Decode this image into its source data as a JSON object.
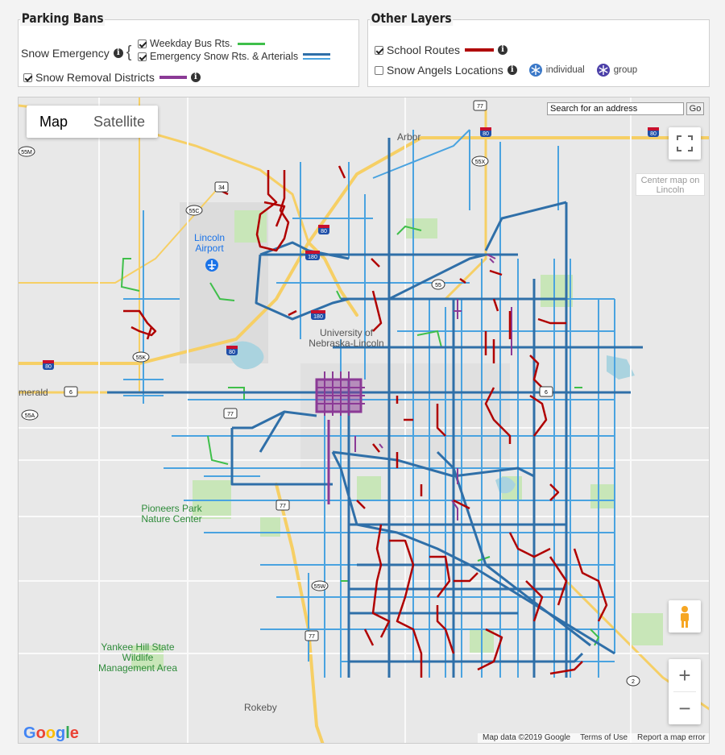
{
  "parking_bans": {
    "title": "Parking Bans",
    "snow_emergency_label": "Snow Emergency",
    "bracket": "{",
    "weekday_bus": {
      "label": "Weekday Bus Rts.",
      "checked": true,
      "color": "#3fbf4a"
    },
    "emergency_snow": {
      "label": "Emergency Snow Rts. & Arterials",
      "checked": true,
      "color_main": "#2f6fa8",
      "color_light": "#4aa3e0"
    },
    "snow_removal": {
      "label": "Snow Removal Districts",
      "checked": true,
      "color": "#8b3a96"
    }
  },
  "other_layers": {
    "title": "Other Layers",
    "school_routes": {
      "label": "School Routes",
      "checked": true,
      "color": "#b00000"
    },
    "snow_angels": {
      "label": "Snow Angels Locations",
      "checked": false,
      "individual_label": "individual",
      "group_label": "group"
    }
  },
  "map": {
    "type_buttons": {
      "map": "Map",
      "satellite": "Satellite"
    },
    "search_placeholder": "Search for an address",
    "search_go": "Go",
    "center_button": "Center map on Lincoln",
    "fullscreen_icon": "fullscreen-icon",
    "zoom_in": "+",
    "zoom_out": "−",
    "google_logo": "Google",
    "attribution": {
      "data": "Map data ©2019 Google",
      "terms": "Terms of Use",
      "report": "Report a map error"
    },
    "places": {
      "arbor": "Arbor",
      "lincoln_airport": "Lincoln Airport",
      "unl": "University of Nebraska-Lincoln",
      "emerald": "merald",
      "pioneers_park": "Pioneers Park Nature Center",
      "yankee_hill": "Yankee Hill State Wildlife Management Area",
      "rokeby": "Rokeby"
    },
    "shields": {
      "i80_a": "80",
      "i80_b": "80",
      "i80_c": "80",
      "i80_d": "80",
      "i80_e": "80",
      "i180": "180",
      "i180_b": "180",
      "us77_a": "77",
      "us77_b": "77",
      "us77_c": "77",
      "us77_d": "77",
      "us34": "34",
      "us6": "6",
      "us6_b": "6",
      "n2": "2",
      "s55m": "55M",
      "s55c": "55C",
      "s55x": "55X",
      "s55k": "55K",
      "s55a": "55A",
      "s55w": "55W",
      "s55": "55"
    }
  }
}
